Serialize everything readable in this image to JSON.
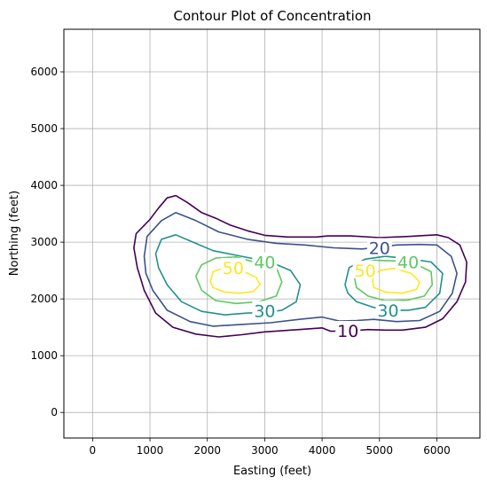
{
  "chart_data": {
    "type": "contour",
    "title": "Contour Plot of Concentration",
    "xlabel": "Easting (feet)",
    "ylabel": "Northing (feet)",
    "xlim": [
      -500,
      6750
    ],
    "ylim": [
      -450,
      6750
    ],
    "xticks": [
      0,
      1000,
      2000,
      3000,
      4000,
      5000,
      6000
    ],
    "yticks": [
      0,
      1000,
      2000,
      3000,
      4000,
      5000,
      6000
    ],
    "grid": true,
    "colors": {
      "10": "#440154",
      "20": "#3b528b",
      "30": "#21918c",
      "40": "#5ec962",
      "50": "#fde725"
    },
    "levels": [
      {
        "level": 10,
        "paths": [
          [
            [
              720,
              2900
            ],
            [
              760,
              3150
            ],
            [
              1000,
              3400
            ],
            [
              1150,
              3600
            ],
            [
              1300,
              3780
            ],
            [
              1450,
              3820
            ],
            [
              1650,
              3700
            ],
            [
              1900,
              3520
            ],
            [
              2150,
              3420
            ],
            [
              2400,
              3300
            ],
            [
              2700,
              3200
            ],
            [
              3000,
              3120
            ],
            [
              3400,
              3090
            ],
            [
              3900,
              3090
            ],
            [
              4100,
              3110
            ],
            [
              4500,
              3110
            ],
            [
              5000,
              3080
            ],
            [
              5500,
              3100
            ],
            [
              6000,
              3130
            ],
            [
              6200,
              3080
            ],
            [
              6400,
              2950
            ],
            [
              6520,
              2650
            ],
            [
              6500,
              2300
            ],
            [
              6350,
              1950
            ],
            [
              6100,
              1650
            ],
            [
              5800,
              1500
            ],
            [
              5400,
              1450
            ],
            [
              5100,
              1450
            ],
            [
              4800,
              1460
            ],
            [
              4550,
              1440
            ],
            [
              4150,
              1430
            ],
            [
              4000,
              1490
            ],
            [
              3600,
              1460
            ],
            [
              3000,
              1420
            ],
            [
              2600,
              1370
            ],
            [
              2200,
              1330
            ],
            [
              1800,
              1380
            ],
            [
              1400,
              1500
            ],
            [
              1100,
              1750
            ],
            [
              900,
              2150
            ],
            [
              780,
              2550
            ],
            [
              720,
              2900
            ]
          ]
        ],
        "labels": [
          {
            "text": "10",
            "x": 4450,
            "y": 1440
          }
        ]
      },
      {
        "level": 20,
        "paths": [
          [
            [
              900,
              2750
            ],
            [
              950,
              3100
            ],
            [
              1200,
              3380
            ],
            [
              1450,
              3520
            ],
            [
              1800,
              3380
            ],
            [
              2200,
              3180
            ],
            [
              2700,
              3050
            ],
            [
              3200,
              2980
            ],
            [
              3700,
              2950
            ],
            [
              4200,
              2900
            ],
            [
              4700,
              2880
            ],
            [
              5300,
              2950
            ],
            [
              5700,
              2960
            ],
            [
              6000,
              2950
            ],
            [
              6250,
              2750
            ],
            [
              6350,
              2450
            ],
            [
              6270,
              2100
            ],
            [
              6050,
              1780
            ],
            [
              5700,
              1620
            ],
            [
              5300,
              1600
            ],
            [
              4900,
              1640
            ],
            [
              4600,
              1620
            ],
            [
              4300,
              1610
            ],
            [
              4000,
              1680
            ],
            [
              3600,
              1640
            ],
            [
              3100,
              1580
            ],
            [
              2600,
              1550
            ],
            [
              2100,
              1520
            ],
            [
              1700,
              1600
            ],
            [
              1300,
              1800
            ],
            [
              1050,
              2150
            ],
            [
              930,
              2450
            ],
            [
              900,
              2750
            ]
          ]
        ],
        "labels": [
          {
            "text": "20",
            "x": 5000,
            "y": 2900
          }
        ]
      },
      {
        "level": 30,
        "paths": [
          [
            [
              1100,
              2800
            ],
            [
              1200,
              3050
            ],
            [
              1450,
              3130
            ],
            [
              1750,
              3000
            ],
            [
              2100,
              2850
            ],
            [
              2600,
              2750
            ],
            [
              3100,
              2650
            ],
            [
              3450,
              2500
            ],
            [
              3620,
              2250
            ],
            [
              3550,
              1950
            ],
            [
              3300,
              1800
            ],
            [
              3000,
              1760
            ],
            [
              2700,
              1750
            ],
            [
              2300,
              1720
            ],
            [
              1900,
              1780
            ],
            [
              1550,
              1950
            ],
            [
              1300,
              2250
            ],
            [
              1150,
              2550
            ],
            [
              1100,
              2800
            ]
          ],
          [
            [
              4400,
              2250
            ],
            [
              4470,
              2550
            ],
            [
              4750,
              2700
            ],
            [
              5100,
              2750
            ],
            [
              5500,
              2710
            ],
            [
              5900,
              2650
            ],
            [
              6100,
              2450
            ],
            [
              6050,
              2100
            ],
            [
              5800,
              1850
            ],
            [
              5500,
              1800
            ],
            [
              5200,
              1800
            ],
            [
              4900,
              1850
            ],
            [
              4600,
              1950
            ],
            [
              4450,
              2100
            ],
            [
              4400,
              2250
            ]
          ]
        ],
        "labels": [
          {
            "text": "30",
            "x": 3000,
            "y": 1790
          },
          {
            "text": "30",
            "x": 5150,
            "y": 1800
          }
        ]
      },
      {
        "level": 40,
        "paths": [
          [
            [
              1800,
              2400
            ],
            [
              1900,
              2600
            ],
            [
              2150,
              2720
            ],
            [
              2500,
              2740
            ],
            [
              2850,
              2640
            ],
            [
              3200,
              2560
            ],
            [
              3300,
              2300
            ],
            [
              3200,
              2050
            ],
            [
              2900,
              1950
            ],
            [
              2500,
              1920
            ],
            [
              2150,
              1970
            ],
            [
              1900,
              2150
            ],
            [
              1800,
              2400
            ]
          ],
          [
            [
              4560,
              2400
            ],
            [
              4650,
              2600
            ],
            [
              4900,
              2680
            ],
            [
              5250,
              2670
            ],
            [
              5600,
              2630
            ],
            [
              5900,
              2480
            ],
            [
              5920,
              2250
            ],
            [
              5780,
              2050
            ],
            [
              5500,
              1980
            ],
            [
              5100,
              1970
            ],
            [
              4800,
              2050
            ],
            [
              4600,
              2200
            ],
            [
              4560,
              2400
            ]
          ]
        ],
        "labels": [
          {
            "text": "40",
            "x": 3000,
            "y": 2650
          },
          {
            "text": "40",
            "x": 5500,
            "y": 2650
          }
        ]
      },
      {
        "level": 50,
        "paths": [
          [
            [
              2050,
              2300
            ],
            [
              2100,
              2480
            ],
            [
              2300,
              2550
            ],
            [
              2600,
              2500
            ],
            [
              2850,
              2380
            ],
            [
              2920,
              2250
            ],
            [
              2800,
              2130
            ],
            [
              2550,
              2100
            ],
            [
              2300,
              2120
            ],
            [
              2100,
              2200
            ],
            [
              2050,
              2300
            ]
          ],
          [
            [
              4900,
              2400
            ],
            [
              5000,
              2500
            ],
            [
              5250,
              2540
            ],
            [
              5550,
              2450
            ],
            [
              5700,
              2300
            ],
            [
              5650,
              2170
            ],
            [
              5400,
              2100
            ],
            [
              5100,
              2120
            ],
            [
              4900,
              2200
            ],
            [
              4880,
              2300
            ],
            [
              4900,
              2400
            ]
          ]
        ],
        "labels": [
          {
            "text": "50",
            "x": 2450,
            "y": 2550
          },
          {
            "text": "50",
            "x": 4750,
            "y": 2500
          }
        ]
      }
    ]
  }
}
